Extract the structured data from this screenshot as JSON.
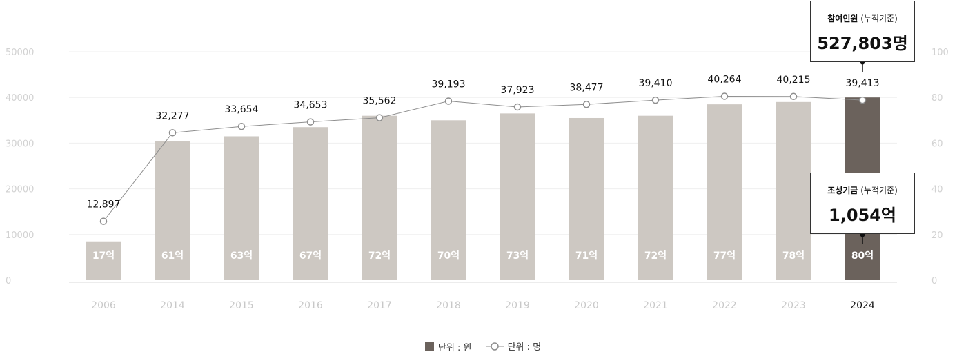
{
  "chart_data": {
    "type": "bar",
    "categories": [
      "2006",
      "2014",
      "2015",
      "2016",
      "2017",
      "2018",
      "2019",
      "2020",
      "2021",
      "2022",
      "2023",
      "2024"
    ],
    "bar_values": [
      17,
      61,
      63,
      67,
      72,
      70,
      73,
      71,
      72,
      77,
      78,
      80
    ],
    "bar_labels": [
      "17억",
      "61억",
      "63억",
      "67억",
      "72억",
      "70억",
      "73억",
      "71억",
      "72억",
      "77억",
      "78억",
      "80억"
    ],
    "line_values": [
      12897,
      32277,
      33654,
      34653,
      35562,
      39193,
      37923,
      38477,
      39410,
      40264,
      40215,
      39413
    ],
    "line_labels": [
      "12,897",
      "32,277",
      "33,654",
      "34,653",
      "35,562",
      "39,193",
      "37,923",
      "38,477",
      "39,410",
      "40,264",
      "40,215",
      "39,413"
    ],
    "y_left_ticks": [
      "0",
      "10000",
      "20000",
      "30000",
      "40000",
      "50000"
    ],
    "y_right_ticks": [
      "0",
      "20",
      "40",
      "60",
      "80",
      "100"
    ],
    "y_left_range": [
      0,
      50000
    ],
    "y_right_range": [
      0,
      100
    ],
    "highlight_category": "2024",
    "grid": true,
    "colors": {
      "bar": "#cdc8c2",
      "bar_highlight": "#6b625c",
      "line": "#8e8e8e",
      "grid": "#efefef"
    }
  },
  "callouts": {
    "participants": {
      "title_bold": "참여인원",
      "title_rest": " (누적기준)",
      "value": "527,803명"
    },
    "fund": {
      "title_bold": "조성기금",
      "title_rest": " (누적기준)",
      "value": "1,054억"
    }
  },
  "legend": {
    "bar_label": "단위 : 원",
    "line_label": "단위 : 명"
  }
}
